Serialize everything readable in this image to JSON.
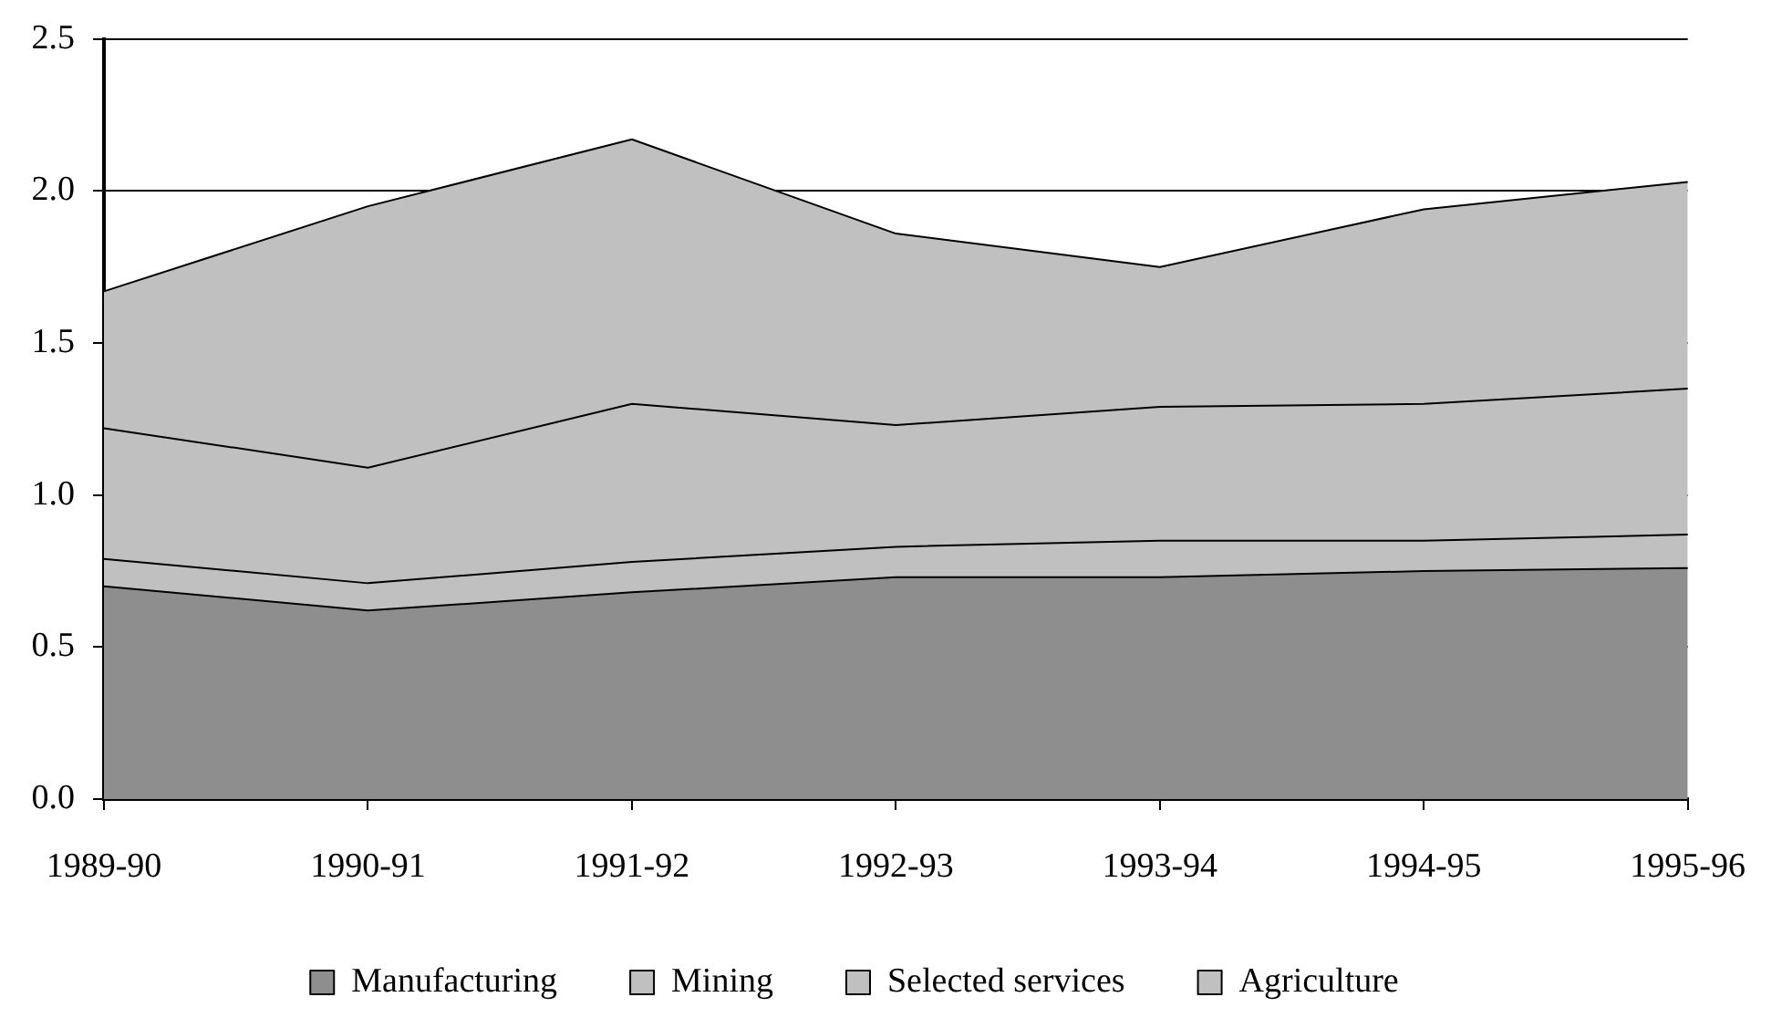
{
  "chart_data": {
    "type": "area",
    "stacked": true,
    "categories": [
      "1989-90",
      "1990-91",
      "1991-92",
      "1992-93",
      "1993-94",
      "1994-95",
      "1995-96"
    ],
    "series": [
      {
        "name": "Manufacturing",
        "color": "#8e8e8e",
        "values": [
          0.7,
          0.62,
          0.68,
          0.73,
          0.73,
          0.75,
          0.76
        ]
      },
      {
        "name": "Mining",
        "color": "#c0c0c0",
        "values": [
          0.09,
          0.09,
          0.1,
          0.1,
          0.12,
          0.1,
          0.11
        ]
      },
      {
        "name": "Selected services",
        "color": "#c0c0c0",
        "values": [
          0.43,
          0.38,
          0.52,
          0.4,
          0.44,
          0.45,
          0.48
        ]
      },
      {
        "name": "Agriculture",
        "color": "#c0c0c0",
        "values": [
          0.45,
          0.86,
          0.87,
          0.63,
          0.46,
          0.64,
          0.68
        ]
      }
    ],
    "ylim": [
      0,
      2.5
    ],
    "yticks": [
      {
        "value": 0,
        "label": "0.0"
      },
      0.5,
      {
        "value": 1,
        "label": "1.0"
      },
      1.5,
      {
        "value": 2,
        "label": "2.0"
      },
      2.5
    ],
    "grid": "y",
    "legend": "bottom"
  }
}
